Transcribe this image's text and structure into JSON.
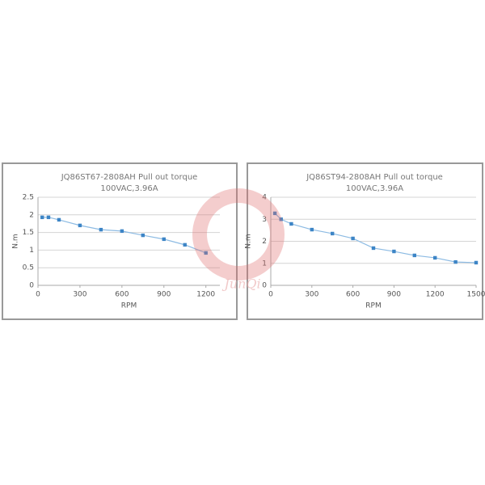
{
  "chart_data": [
    {
      "type": "line",
      "title": "JQ86ST67-2808AH Pull out torque",
      "subtitle": "100VAC,3.96A",
      "x_label": "RPM",
      "y_label": "N.m",
      "xlim": [
        0,
        1300
      ],
      "xticks": [
        0,
        300,
        600,
        900,
        1200
      ],
      "ylim": [
        0,
        2.5
      ],
      "yticks": [
        0,
        0.5,
        1,
        1.5,
        2,
        2.5
      ],
      "grid": true,
      "series": [
        {
          "name": "Pull out torque",
          "color": "#3d85c6",
          "x": [
            30,
            75,
            150,
            300,
            450,
            600,
            750,
            900,
            1050,
            1200
          ],
          "values": [
            1.93,
            1.93,
            1.86,
            1.7,
            1.58,
            1.54,
            1.42,
            1.31,
            1.15,
            0.92
          ]
        }
      ]
    },
    {
      "type": "line",
      "title": "JQ86ST94-2808AH Pull out torque",
      "subtitle": "100VAC,3.96A",
      "x_label": "RPM",
      "y_label": "N.m",
      "xlim": [
        0,
        1500
      ],
      "xticks": [
        0,
        300,
        600,
        900,
        1200,
        1500
      ],
      "ylim": [
        0,
        4
      ],
      "yticks": [
        0,
        1,
        2,
        3,
        4
      ],
      "grid": true,
      "series": [
        {
          "name": "Pull out torque",
          "color": "#3d85c6",
          "x": [
            30,
            75,
            150,
            300,
            450,
            600,
            750,
            900,
            1050,
            1200,
            1350,
            1500
          ],
          "values": [
            3.27,
            3.0,
            2.79,
            2.53,
            2.35,
            2.13,
            1.69,
            1.54,
            1.36,
            1.25,
            1.06,
            1.03
          ]
        }
      ]
    }
  ],
  "watermark": "JunQi"
}
